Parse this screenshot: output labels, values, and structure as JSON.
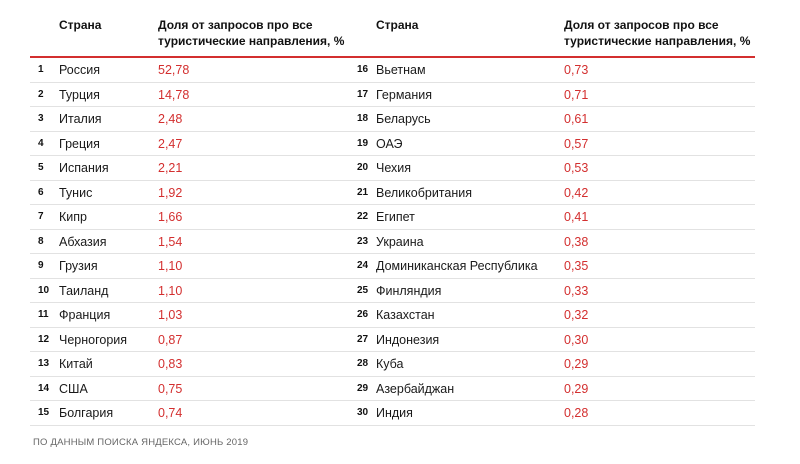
{
  "header": {
    "country_label": "Страна",
    "share_label": "Доля от запросов про все туристические направления, %"
  },
  "accent_color": "#d32f2f",
  "rows": [
    {
      "rank": "1",
      "country": "Россия",
      "value": "52,78"
    },
    {
      "rank": "2",
      "country": "Турция",
      "value": "14,78"
    },
    {
      "rank": "3",
      "country": "Италия",
      "value": "2,48"
    },
    {
      "rank": "4",
      "country": "Греция",
      "value": "2,47"
    },
    {
      "rank": "5",
      "country": "Испания",
      "value": "2,21"
    },
    {
      "rank": "6",
      "country": "Тунис",
      "value": "1,92"
    },
    {
      "rank": "7",
      "country": "Кипр",
      "value": "1,66"
    },
    {
      "rank": "8",
      "country": "Абхазия",
      "value": "1,54"
    },
    {
      "rank": "9",
      "country": "Грузия",
      "value": "1,10"
    },
    {
      "rank": "10",
      "country": "Таиланд",
      "value": "1,10"
    },
    {
      "rank": "11",
      "country": "Франция",
      "value": "1,03"
    },
    {
      "rank": "12",
      "country": "Черногория",
      "value": "0,87"
    },
    {
      "rank": "13",
      "country": "Китай",
      "value": "0,83"
    },
    {
      "rank": "14",
      "country": "США",
      "value": "0,75"
    },
    {
      "rank": "15",
      "country": "Болгария",
      "value": "0,74"
    },
    {
      "rank": "16",
      "country": "Вьетнам",
      "value": "0,73"
    },
    {
      "rank": "17",
      "country": "Германия",
      "value": "0,71"
    },
    {
      "rank": "18",
      "country": "Беларусь",
      "value": "0,61"
    },
    {
      "rank": "19",
      "country": "ОАЭ",
      "value": "0,57"
    },
    {
      "rank": "20",
      "country": "Чехия",
      "value": "0,53"
    },
    {
      "rank": "21",
      "country": "Великобритания",
      "value": "0,42"
    },
    {
      "rank": "22",
      "country": "Египет",
      "value": "0,41"
    },
    {
      "rank": "23",
      "country": "Украина",
      "value": "0,38"
    },
    {
      "rank": "24",
      "country": "Доминиканская Республика",
      "value": "0,35"
    },
    {
      "rank": "25",
      "country": "Финляндия",
      "value": "0,33"
    },
    {
      "rank": "26",
      "country": "Казахстан",
      "value": "0,32"
    },
    {
      "rank": "27",
      "country": "Индонезия",
      "value": "0,30"
    },
    {
      "rank": "28",
      "country": "Куба",
      "value": "0,29"
    },
    {
      "rank": "29",
      "country": "Азербайджан",
      "value": "0,29"
    },
    {
      "rank": "30",
      "country": "Индия",
      "value": "0,28"
    }
  ],
  "source": "ПО ДАННЫМ ПОИСКА ЯНДЕКСА, ИЮНЬ 2019"
}
